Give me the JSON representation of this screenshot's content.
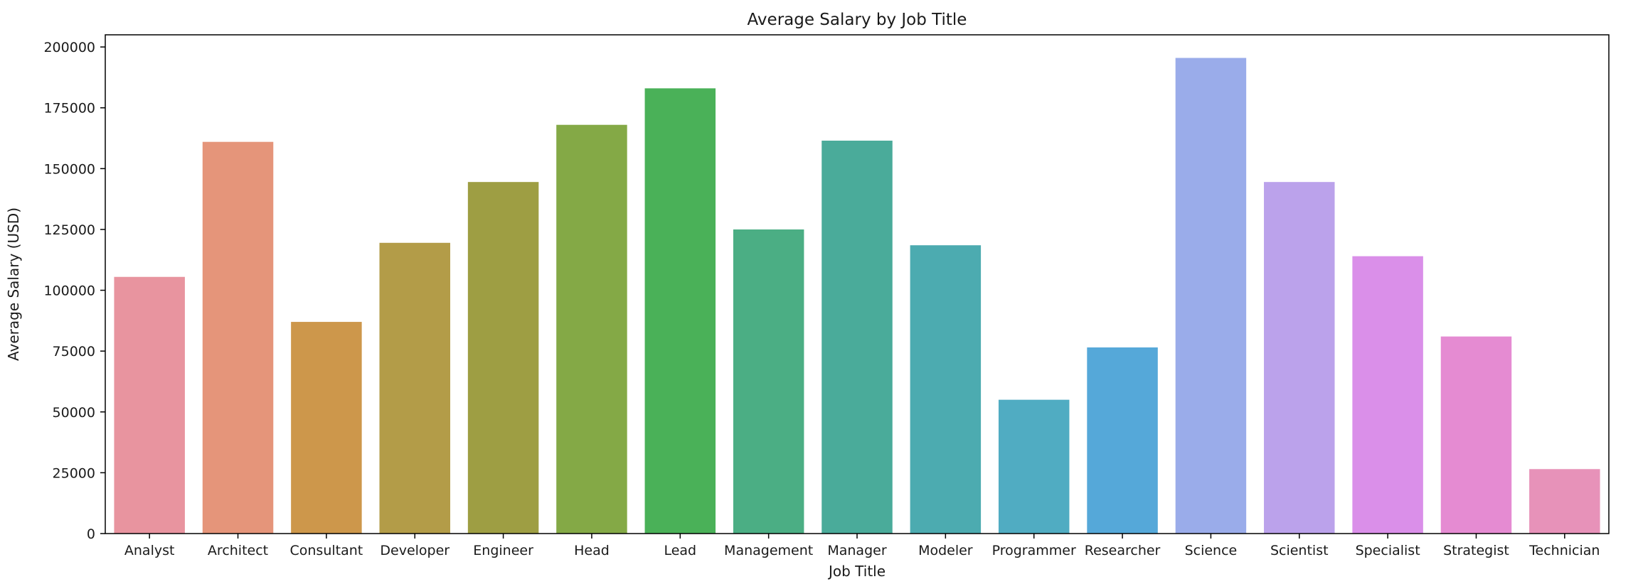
{
  "chart_data": {
    "type": "bar",
    "title": "Average Salary by Job Title",
    "xlabel": "Job Title",
    "ylabel": "Average Salary (USD)",
    "ylim": [
      0,
      205000
    ],
    "yticks": [
      0,
      25000,
      50000,
      75000,
      100000,
      125000,
      150000,
      175000,
      200000
    ],
    "grid": false,
    "legend": "none",
    "categories": [
      "Analyst",
      "Architect",
      "Consultant",
      "Developer",
      "Engineer",
      "Head",
      "Lead",
      "Management",
      "Manager",
      "Modeler",
      "Programmer",
      "Researcher",
      "Science",
      "Scientist",
      "Specialist",
      "Strategist",
      "Technician"
    ],
    "values": [
      105500,
      161000,
      87000,
      119500,
      144500,
      168000,
      183000,
      125000,
      161500,
      118500,
      55000,
      76500,
      195500,
      144500,
      114000,
      81000,
      26500
    ],
    "colors": [
      "#e8949f",
      "#e5957a",
      "#cd974b",
      "#b39c48",
      "#9e9e43",
      "#84a946",
      "#4ab158",
      "#4bae84",
      "#4aab9a",
      "#4cabb0",
      "#50acc2",
      "#55a8d9",
      "#9aacea",
      "#bba2eb",
      "#da8fe9",
      "#e58bd2",
      "#e792b9"
    ]
  }
}
